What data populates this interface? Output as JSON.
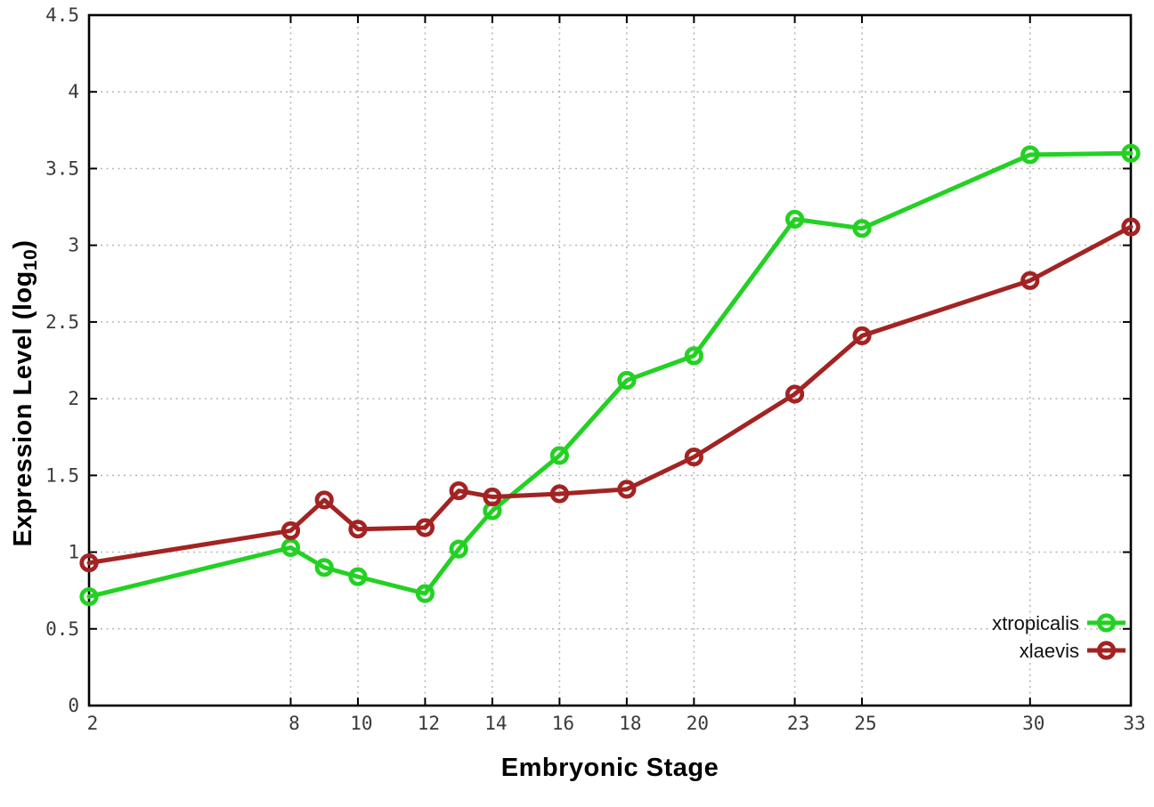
{
  "chart_data": {
    "type": "line",
    "xlabel": "Embryonic Stage",
    "ylabel": "Expression Level (log10)",
    "ylabel_parts": {
      "prefix": "Expression Level (log",
      "sub": "10",
      "suffix": ")"
    },
    "xlim": [
      2,
      33
    ],
    "ylim": [
      0,
      4.5
    ],
    "grid": true,
    "legend_position": "bottom-right-inside",
    "x": [
      2,
      8,
      9,
      10,
      12,
      13,
      14,
      16,
      18,
      20,
      23,
      25,
      30,
      33
    ],
    "xticks": [
      2,
      8,
      10,
      12,
      14,
      16,
      18,
      20,
      23,
      25,
      30,
      33
    ],
    "xtick_labels": [
      "2",
      "8",
      "10",
      "12",
      "14",
      "16",
      "18",
      "20",
      "23",
      "25",
      "30",
      "33"
    ],
    "yticks": [
      0,
      0.5,
      1,
      1.5,
      2,
      2.5,
      3,
      3.5,
      4,
      4.5
    ],
    "ytick_labels": [
      "0",
      "0.5",
      "1",
      "1.5",
      "2",
      "2.5",
      "3",
      "3.5",
      "4",
      "4.5"
    ],
    "series": [
      {
        "name": "xtropicalis",
        "color": "#23d123",
        "values": [
          0.71,
          1.03,
          0.9,
          0.84,
          0.73,
          1.02,
          1.27,
          1.63,
          2.12,
          2.28,
          3.17,
          3.11,
          3.59,
          3.6
        ]
      },
      {
        "name": "xlaevis",
        "color": "#a32323",
        "values": [
          0.93,
          1.14,
          1.34,
          1.15,
          1.16,
          1.4,
          1.36,
          1.38,
          1.41,
          1.62,
          2.03,
          2.41,
          2.77,
          3.12
        ]
      }
    ],
    "colors": {
      "background": "#ffffff",
      "plot_border": "#000000",
      "gridline": "#b4b4b4",
      "tick_label": "#3a3a3a"
    }
  }
}
